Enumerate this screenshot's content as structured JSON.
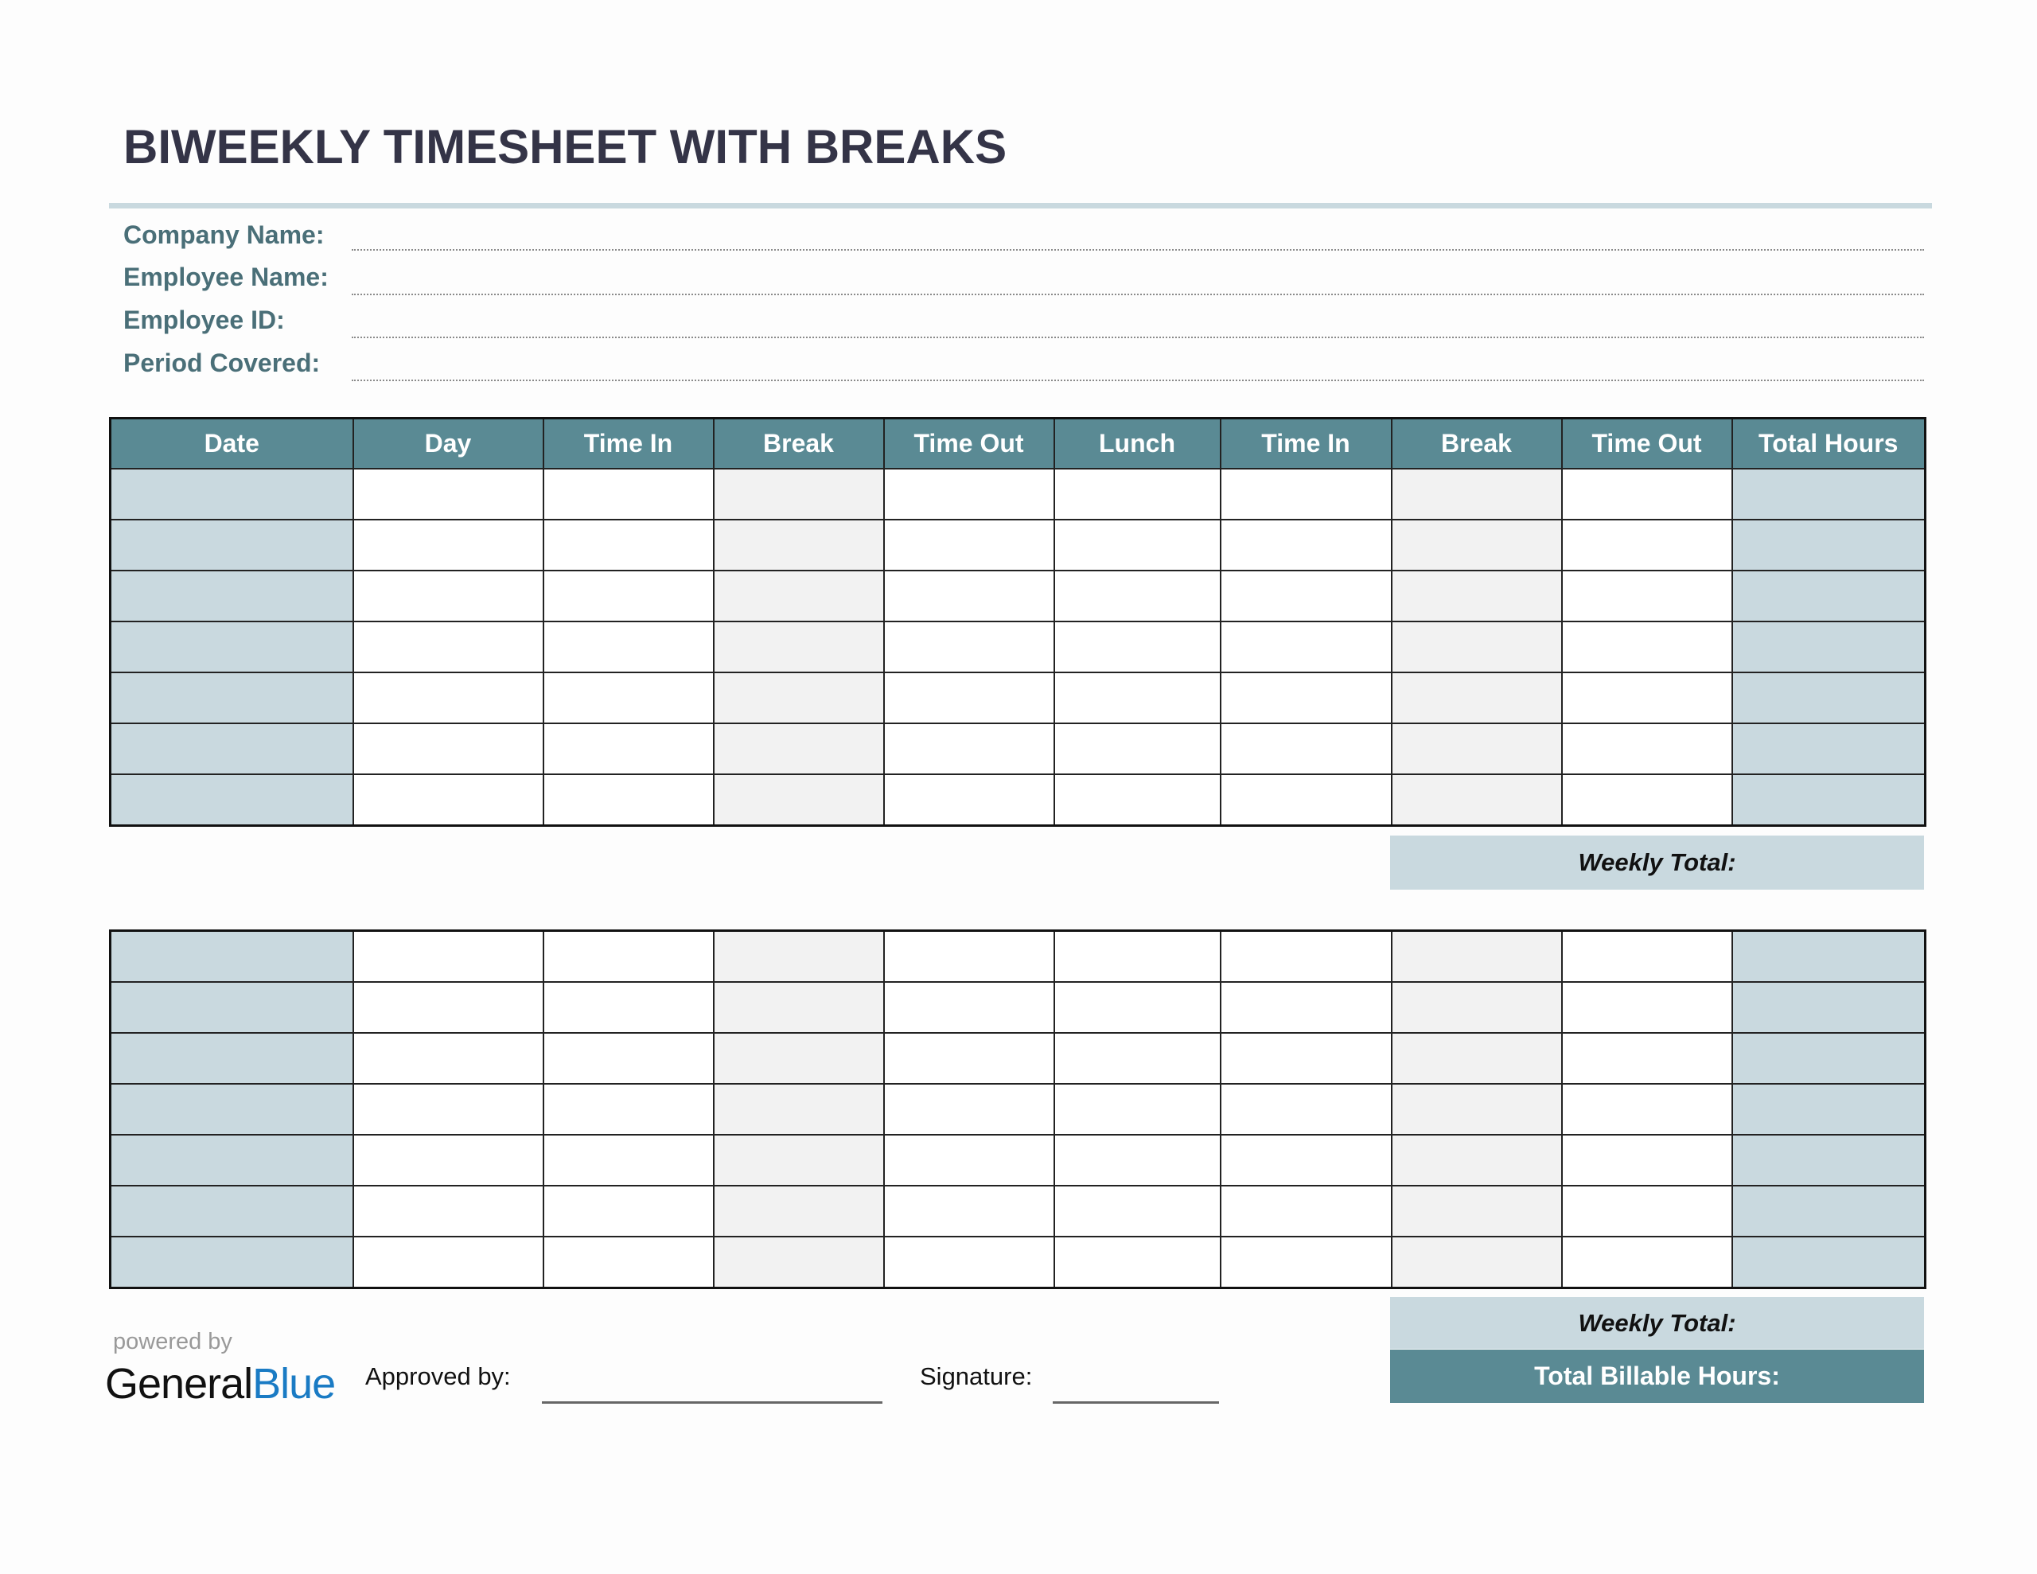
{
  "title": "BIWEEKLY TIMESHEET WITH BREAKS",
  "fields": [
    "Company Name:",
    "Employee Name:",
    "Employee ID:",
    "Period Covered:"
  ],
  "columns": [
    "Date",
    "Day",
    "Time In",
    "Break",
    "Time Out",
    "Lunch",
    "Time In",
    "Break",
    "Time Out",
    "Total Hours"
  ],
  "weekly_total_label": "Weekly Total:",
  "total_billable_label": "Total Billable Hours:",
  "approved_by_label": "Approved by:",
  "signature_label": "Signature:",
  "logo": {
    "powered_by": "powered by",
    "general": "General",
    "blue": "Blue"
  },
  "colors": {
    "header": "#5a8a94",
    "date_column": "#c9d9df",
    "break_column": "#f2f2f2",
    "title": "#343447",
    "logo_blue": "#1a7bc4"
  }
}
